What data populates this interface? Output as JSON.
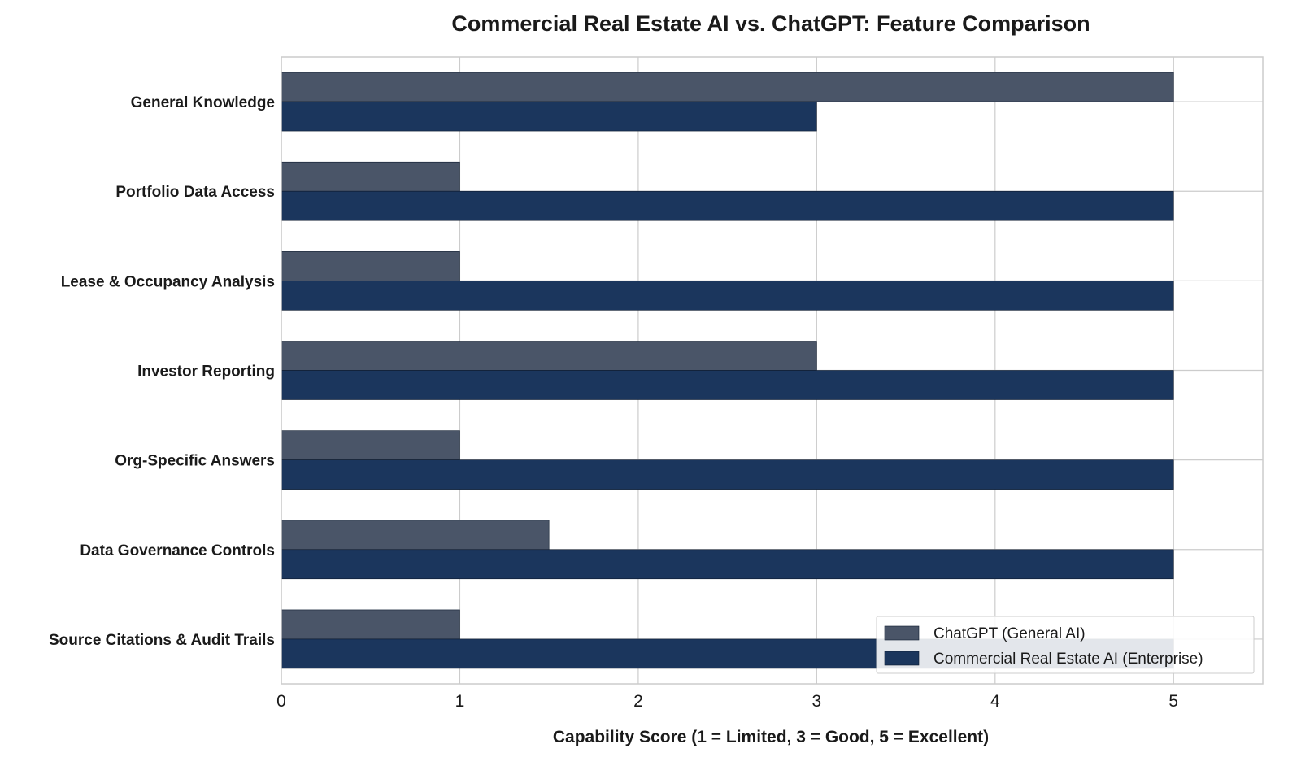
{
  "chart_data": {
    "type": "bar",
    "orientation": "horizontal",
    "title": "Commercial Real Estate AI vs. ChatGPT: Feature Comparison",
    "xlabel": "Capability Score (1 = Limited, 3 = Good, 5 = Excellent)",
    "ylabel": "",
    "xlim": [
      0,
      5.5
    ],
    "xticks": [
      0,
      1,
      2,
      3,
      4,
      5
    ],
    "grid": true,
    "legend_position": "bottom-right",
    "categories": [
      "General Knowledge",
      "Portfolio Data Access",
      "Lease & Occupancy Analysis",
      "Investor Reporting",
      "Org-Specific Answers",
      "Data Governance Controls",
      "Source Citations & Audit Trails"
    ],
    "series": [
      {
        "name": "ChatGPT (General AI)",
        "color": "#4a5568",
        "values": [
          5,
          1,
          1,
          3,
          1,
          1.5,
          1
        ]
      },
      {
        "name": "Commercial Real Estate AI (Enterprise)",
        "color": "#1b365d",
        "values": [
          3,
          5,
          5,
          5,
          5,
          5,
          5
        ]
      }
    ]
  }
}
